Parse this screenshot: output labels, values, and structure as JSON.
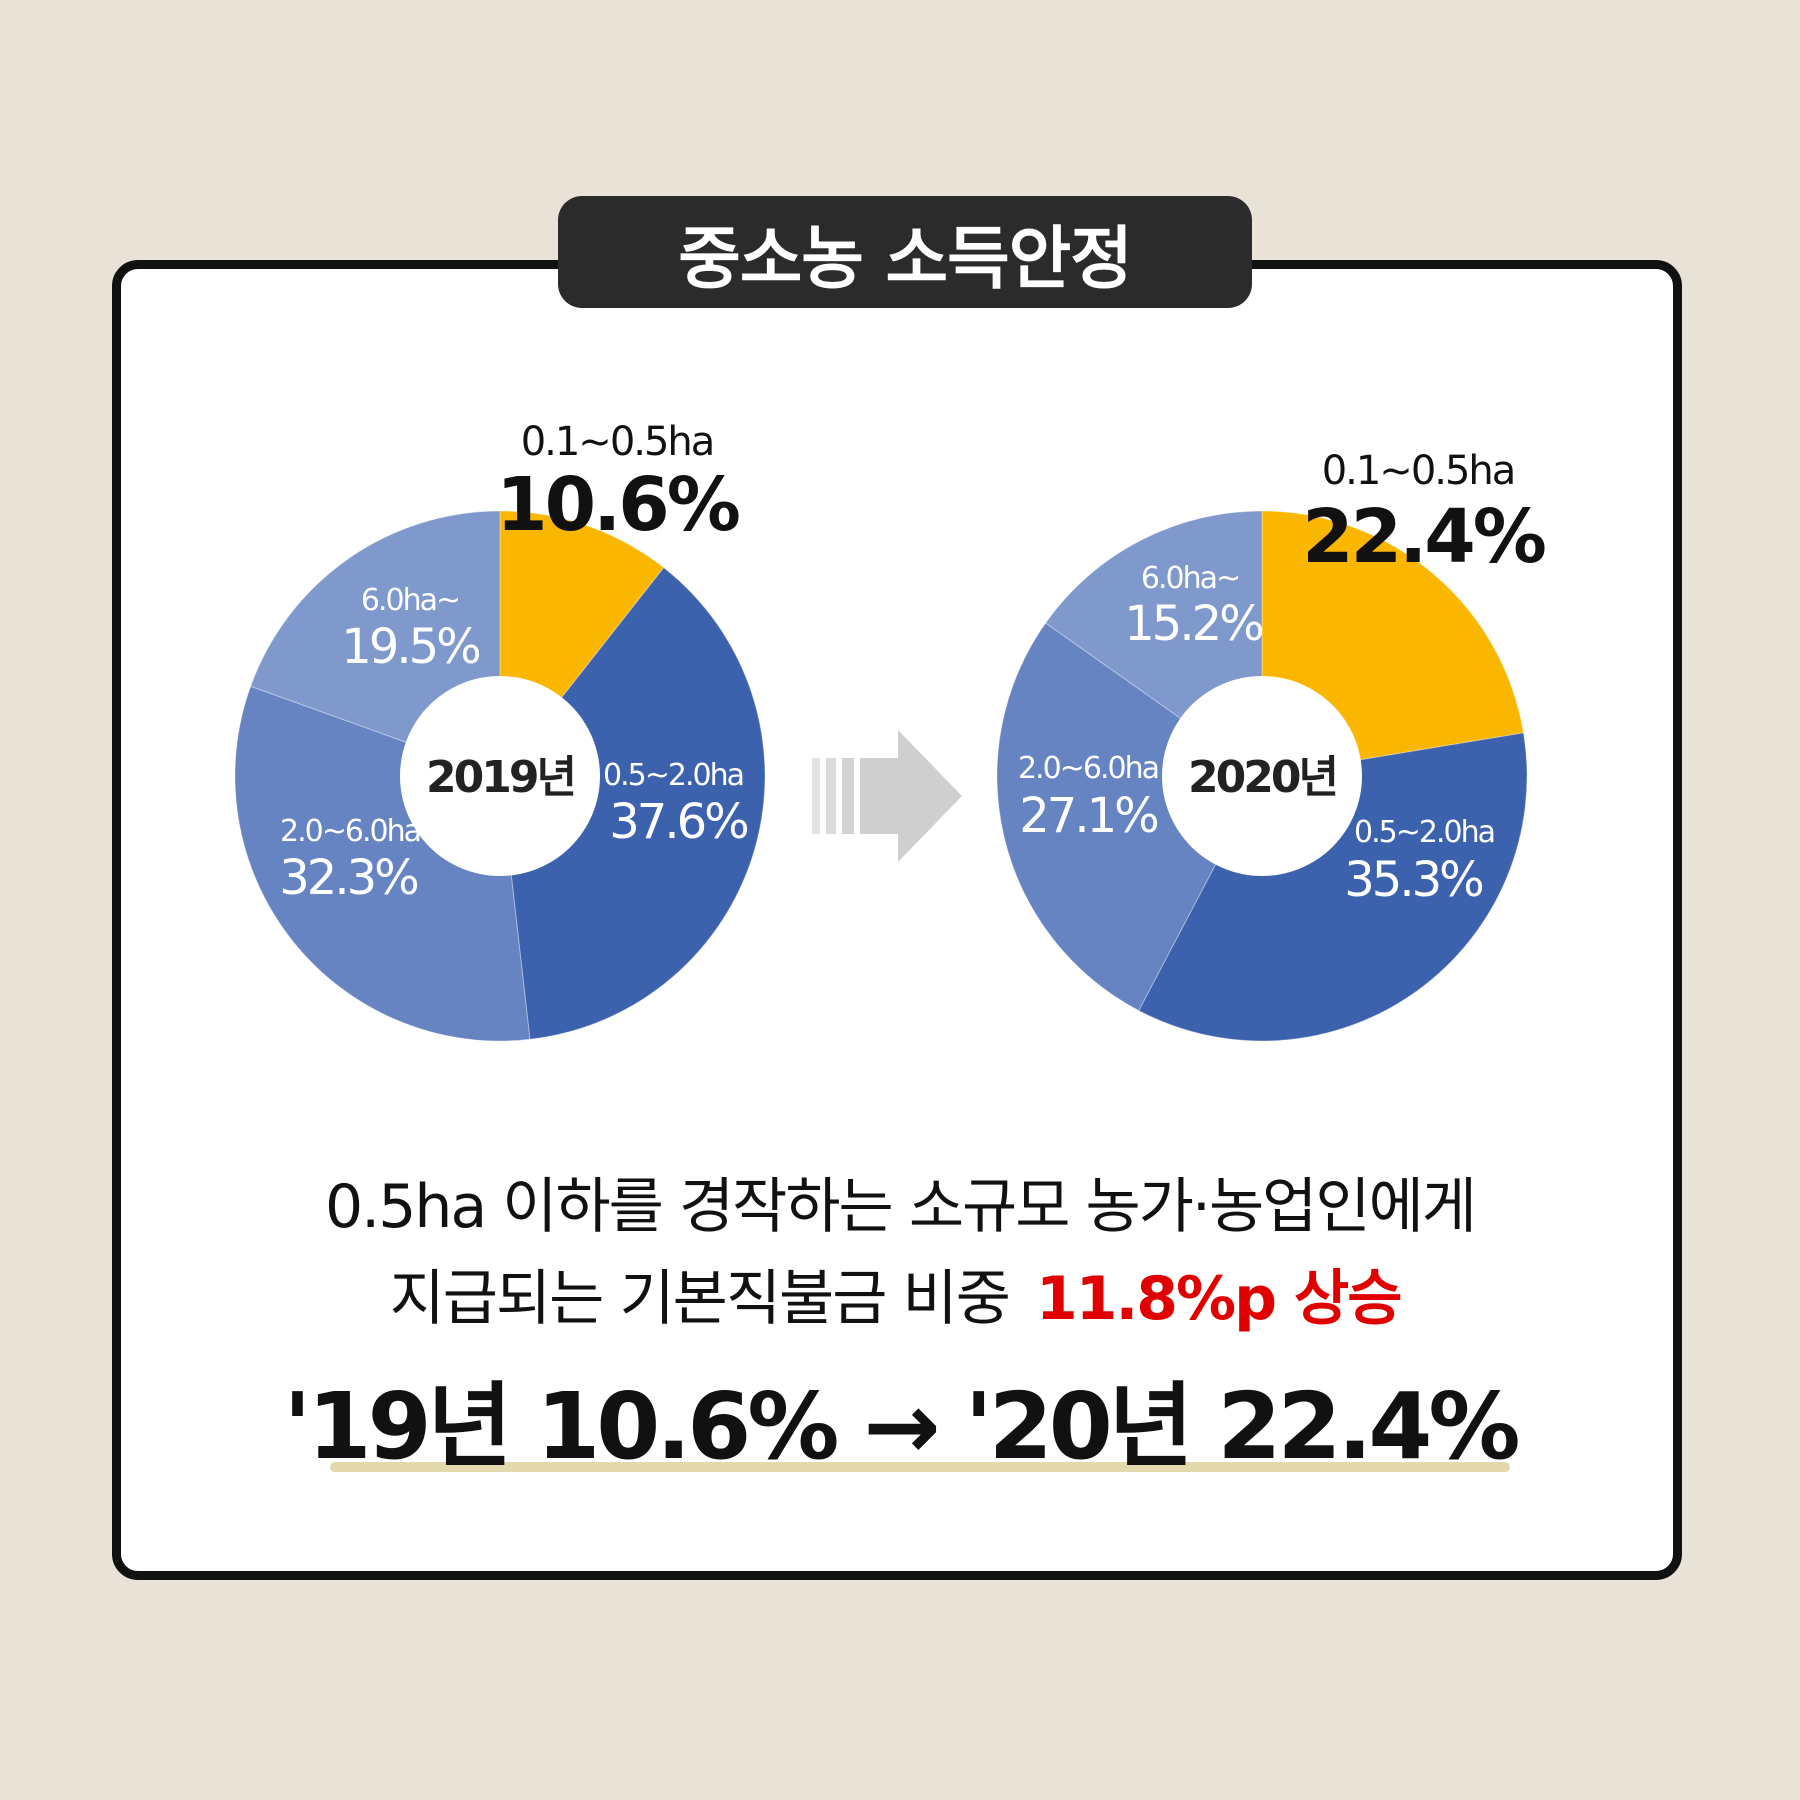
{
  "title": "중소농 소득안정",
  "colors": {
    "background": "#e9e2d6",
    "highlight_slice": "#fbb600",
    "dark_blue": "#3d62ad",
    "mid_blue": "#6683c2",
    "light_blue": "#7f99cc",
    "red_text": "#e00000"
  },
  "chart_data": [
    {
      "type": "pie",
      "center_label": "2019년",
      "slices": [
        {
          "label": "0.1~0.5ha",
          "value": 10.6,
          "display": "10.6%"
        },
        {
          "label": "0.5~2.0ha",
          "value": 37.6,
          "display": "37.6%"
        },
        {
          "label": "2.0~6.0ha",
          "value": 32.3,
          "display": "32.3%"
        },
        {
          "label": "6.0ha~",
          "value": 19.5,
          "display": "19.5%"
        }
      ]
    },
    {
      "type": "pie",
      "center_label": "2020년",
      "slices": [
        {
          "label": "0.1~0.5ha",
          "value": 22.4,
          "display": "22.4%"
        },
        {
          "label": "0.5~2.0ha",
          "value": 35.3,
          "display": "35.3%"
        },
        {
          "label": "2.0~6.0ha",
          "value": 27.1,
          "display": "27.1%"
        },
        {
          "label": "6.0ha~",
          "value": 15.2,
          "display": "15.2%"
        }
      ]
    }
  ],
  "caption": {
    "line1": "0.5ha 이하를 경작하는 소규모 농가·농업인에게",
    "line2_prefix": "지급되는 기본직불금 비중 ",
    "line2_highlight": "11.8%p 상승",
    "summary": "'19년 10.6% → '20년 22.4%"
  }
}
